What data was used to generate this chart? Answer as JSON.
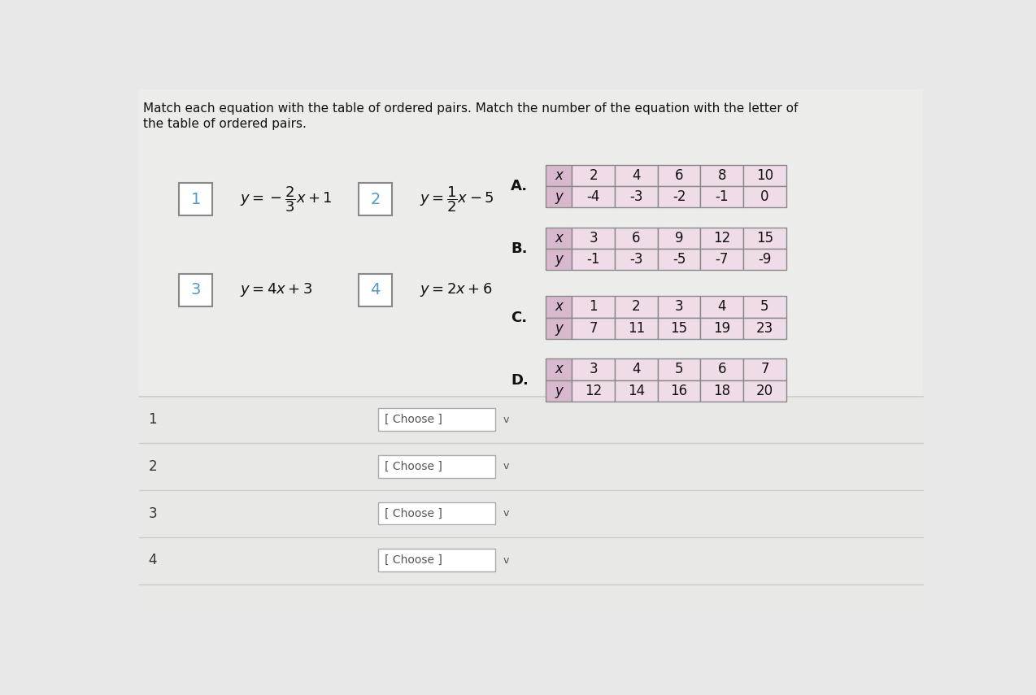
{
  "title_line1": "Match each equation with the table of ordered pairs. Match the number of the equation with the letter of",
  "title_line2": "the table of ordered pairs.",
  "bg_color": "#e8e8e8",
  "panel_bg": "#f0f0ee",
  "equations": [
    {
      "num": "1",
      "latex": "$y = -\\dfrac{2}{3}x + 1$"
    },
    {
      "num": "2",
      "latex": "$y = \\dfrac{1}{2}x - 5$"
    },
    {
      "num": "3",
      "latex": "$y = 4x + 3$"
    },
    {
      "num": "4",
      "latex": "$y = 2x + 6$"
    }
  ],
  "tables": [
    {
      "label": "A.",
      "x_vals": [
        "2",
        "4",
        "6",
        "8",
        "10"
      ],
      "y_vals": [
        "-4",
        "-3",
        "-2",
        "-1",
        "0"
      ]
    },
    {
      "label": "B.",
      "x_vals": [
        "3",
        "6",
        "9",
        "12",
        "15"
      ],
      "y_vals": [
        "-1",
        "-3",
        "-5",
        "-7",
        "-9"
      ]
    },
    {
      "label": "C.",
      "x_vals": [
        "1",
        "2",
        "3",
        "4",
        "5"
      ],
      "y_vals": [
        "7",
        "11",
        "15",
        "19",
        "23"
      ]
    },
    {
      "label": "D.",
      "x_vals": [
        "3",
        "4",
        "5",
        "6",
        "7"
      ],
      "y_vals": [
        "12",
        "14",
        "16",
        "18",
        "20"
      ]
    }
  ],
  "dropdown_text": "[ Choose ]",
  "num_color": "#5599cc",
  "table_header_bg": "#d8b8cc",
  "table_data_bg": "#f0dce8",
  "table_border": "#888888",
  "eq_box_border": "#888888",
  "eq_box_bg": "#ffffff",
  "num_box_border": "#888888",
  "num_box_bg": "#ffffff",
  "sep_line_color": "#cccccc",
  "bottom_bg": "#e8e8e6"
}
